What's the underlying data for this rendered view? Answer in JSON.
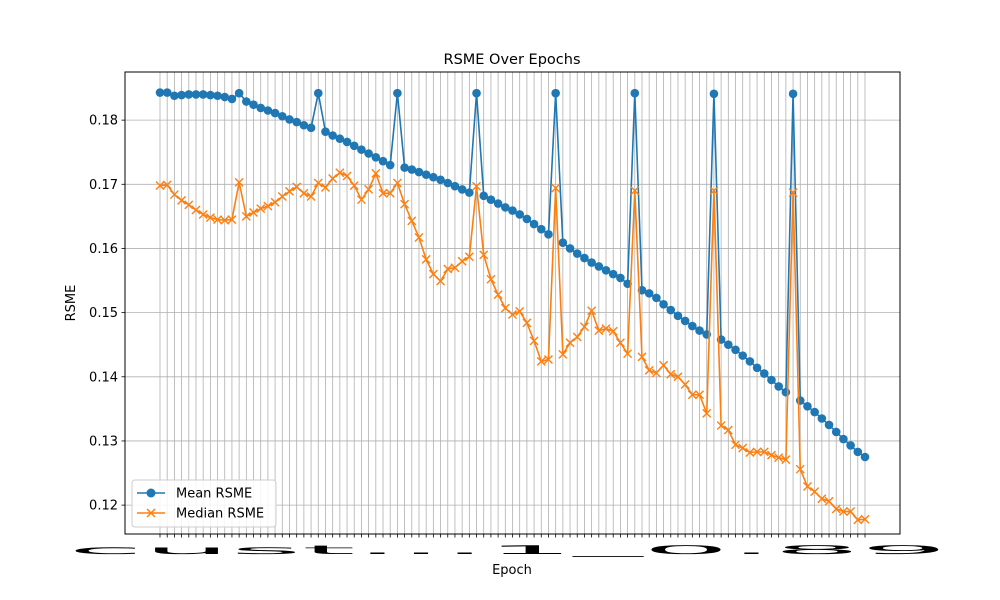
{
  "chart_data": {
    "type": "line",
    "title": "RSME Over Epochs",
    "xlabel": "Epoch",
    "ylabel": "RSME",
    "ylim": [
      0.1155,
      0.1875
    ],
    "y_ticks": [
      0.12,
      0.13,
      0.14,
      0.15,
      0.16,
      0.17,
      0.18
    ],
    "grid": true,
    "legend_position": "lower-left",
    "x_tick_labels_overlapping": "cust...1_0.89",
    "x": [
      1,
      2,
      3,
      4,
      5,
      6,
      7,
      8,
      9,
      10,
      11,
      12,
      13,
      14,
      15,
      16,
      17,
      18,
      19,
      20,
      21,
      22,
      23,
      24,
      25,
      26,
      27,
      28,
      29,
      30,
      31,
      32,
      33,
      34,
      35,
      36,
      37,
      38,
      39,
      40,
      41,
      42,
      43,
      44,
      45,
      46,
      47,
      48,
      49,
      50,
      51,
      52,
      53,
      54,
      55,
      56,
      57,
      58,
      59,
      60,
      61,
      62,
      63,
      64,
      65,
      66,
      67,
      68,
      69,
      70,
      71,
      72,
      73,
      74,
      75,
      76,
      77,
      78,
      79,
      80,
      81,
      82,
      83,
      84,
      85,
      86,
      87,
      88,
      89,
      90,
      91,
      92,
      93,
      94,
      95,
      96,
      97,
      98,
      99
    ],
    "series": [
      {
        "name": "Mean RSME",
        "color": "#1f77b4",
        "marker": "circle",
        "values": [
          0.1843,
          0.1843,
          0.1838,
          0.1839,
          0.184,
          0.184,
          0.184,
          0.1839,
          0.1838,
          0.1836,
          0.1833,
          0.1842,
          0.1829,
          0.1824,
          0.1819,
          0.1815,
          0.1811,
          0.1806,
          0.1801,
          0.1797,
          0.1792,
          0.1788,
          0.1842,
          0.1782,
          0.1776,
          0.1771,
          0.1766,
          0.176,
          0.1754,
          0.1748,
          0.1742,
          0.1736,
          0.173,
          0.1842,
          0.1726,
          0.1723,
          0.1719,
          0.1715,
          0.1711,
          0.1707,
          0.1702,
          0.1697,
          0.1692,
          0.1687,
          0.1842,
          0.1682,
          0.1676,
          0.167,
          0.1664,
          0.1659,
          0.1653,
          0.1646,
          0.1638,
          0.163,
          0.1622,
          0.1842,
          0.1609,
          0.16,
          0.1592,
          0.1585,
          0.1578,
          0.1572,
          0.1566,
          0.156,
          0.1554,
          0.1545,
          0.1842,
          0.1535,
          0.153,
          0.1523,
          0.1513,
          0.1504,
          0.1495,
          0.1487,
          0.1479,
          0.1472,
          0.1466,
          0.1841,
          0.1458,
          0.145,
          0.1442,
          0.1433,
          0.1424,
          0.1414,
          0.1405,
          0.1395,
          0.1385,
          0.1376,
          0.1841,
          0.1363,
          0.1354,
          0.1345,
          0.1335,
          0.1325,
          0.1314,
          0.1303,
          0.1293,
          0.1283,
          0.1275
        ]
      },
      {
        "name": "Median RSME",
        "color": "#ff7f0e",
        "marker": "x",
        "values": [
          0.1698,
          0.1699,
          0.1684,
          0.1675,
          0.1668,
          0.166,
          0.1653,
          0.1648,
          0.1645,
          0.1644,
          0.1645,
          0.1703,
          0.165,
          0.1656,
          0.1662,
          0.1666,
          0.1672,
          0.1681,
          0.1689,
          0.1696,
          0.1686,
          0.1681,
          0.1702,
          0.1695,
          0.1709,
          0.1718,
          0.1713,
          0.1698,
          0.1676,
          0.1692,
          0.1717,
          0.1686,
          0.1686,
          0.1702,
          0.1669,
          0.1643,
          0.1617,
          0.1583,
          0.156,
          0.1549,
          0.1568,
          0.157,
          0.158,
          0.1587,
          0.1697,
          0.159,
          0.1552,
          0.1528,
          0.1507,
          0.1497,
          0.1502,
          0.1484,
          0.1456,
          0.1424,
          0.1427,
          0.1694,
          0.1435,
          0.1453,
          0.1462,
          0.1478,
          0.1503,
          0.1472,
          0.1475,
          0.1471,
          0.1453,
          0.1436,
          0.169,
          0.1431,
          0.141,
          0.1406,
          0.1418,
          0.1404,
          0.14,
          0.1388,
          0.1372,
          0.1372,
          0.1343,
          0.169,
          0.1324,
          0.1317,
          0.1294,
          0.1289,
          0.1282,
          0.1283,
          0.1283,
          0.1278,
          0.1274,
          0.1271,
          0.1687,
          0.1256,
          0.1229,
          0.1221,
          0.121,
          0.1206,
          0.1194,
          0.119,
          0.119,
          0.1177,
          0.1178
        ]
      }
    ]
  }
}
